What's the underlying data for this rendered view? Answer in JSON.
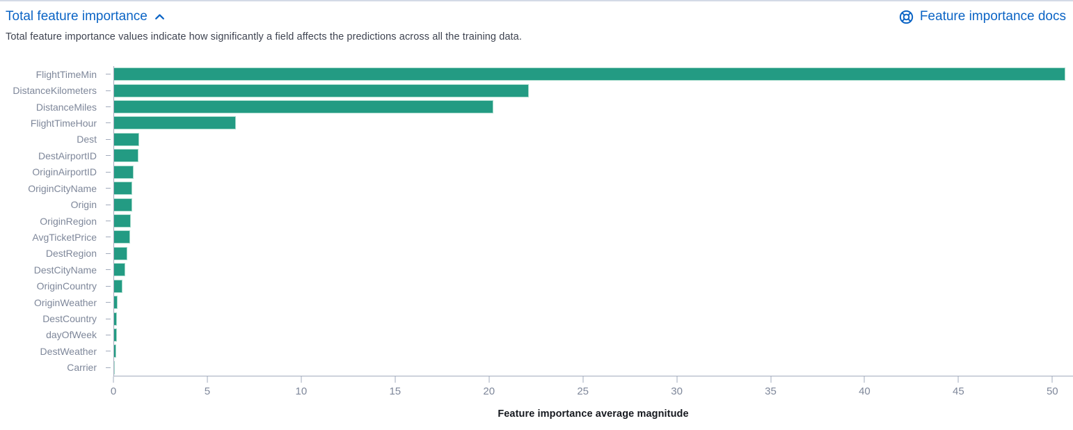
{
  "header": {
    "title": "Total feature importance",
    "collapse_icon": "chevron-up",
    "docs_link": "Feature importance docs",
    "docs_icon": "help-ring",
    "description": "Total feature importance values indicate how significantly a field affects the predictions across all the training data."
  },
  "colors": {
    "link_blue": "#0b64c5",
    "bar_fill": "#239b83",
    "bar_border": "#a9dccd",
    "axis_line": "#a2abbc",
    "tick_label": "#7e879a",
    "description_text": "#3e4350",
    "axis_title_text": "#16191f",
    "panel_top_border": "#d3dae6"
  },
  "chart_data": {
    "type": "bar",
    "orientation": "horizontal",
    "title": "Total feature importance",
    "categories": [
      "FlightTimeMin",
      "DistanceKilometers",
      "DistanceMiles",
      "FlightTimeHour",
      "Dest",
      "DestAirportID",
      "OriginAirportID",
      "OriginCityName",
      "Origin",
      "OriginRegion",
      "AvgTicketPrice",
      "DestRegion",
      "DestCityName",
      "OriginCountry",
      "OriginWeather",
      "DestCountry",
      "dayOfWeek",
      "DestWeather",
      "Carrier"
    ],
    "values": [
      50.7,
      22.1,
      20.2,
      6.5,
      1.35,
      1.3,
      1.05,
      0.95,
      0.95,
      0.9,
      0.85,
      0.7,
      0.6,
      0.45,
      0.19,
      0.16,
      0.16,
      0.11,
      0.05
    ],
    "xlabel": "Feature importance average magnitude",
    "ylabel": "",
    "x_ticks": [
      0,
      5,
      10,
      15,
      20,
      25,
      30,
      35,
      40,
      45,
      50
    ],
    "xlim": [
      0,
      51.1
    ],
    "grid": false,
    "legend": false
  }
}
